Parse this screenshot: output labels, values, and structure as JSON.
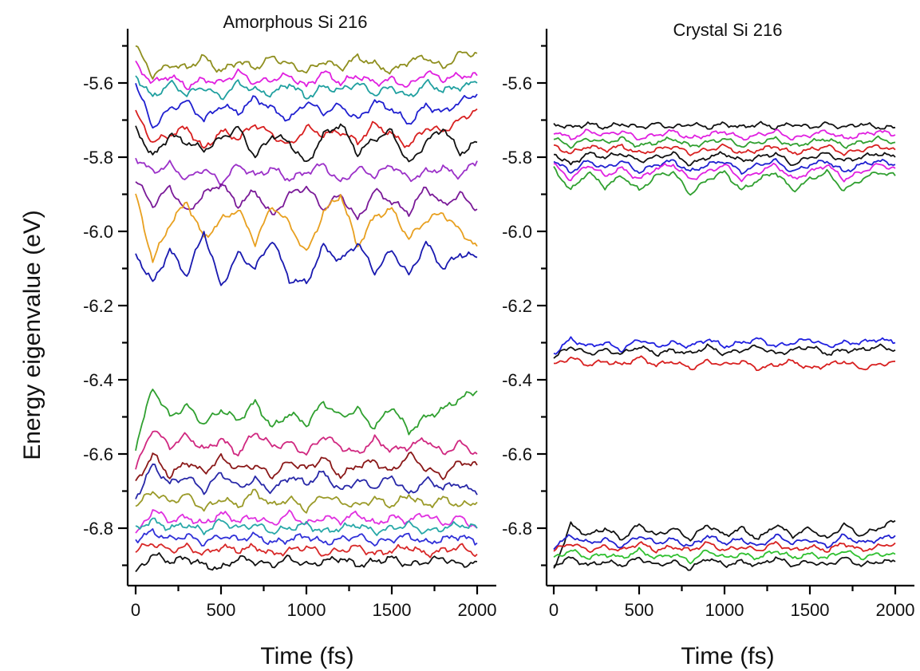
{
  "ylabel": "Energy eigenvalue (eV)",
  "chart_data": [
    {
      "type": "line",
      "title": "Amorphous  Si 216",
      "xlabel": "Time (fs)",
      "ylabel": "Energy eigenvalue (eV)",
      "xlim": [
        0,
        2000
      ],
      "ylim": [
        -6.93,
        -5.49
      ],
      "xticks": [
        "0",
        "500",
        "1000",
        "1500",
        "2000"
      ],
      "yticks": [
        "-5.6",
        "-5.8",
        "-6.0",
        "-6.2",
        "-6.4",
        "-6.6",
        "-6.8"
      ],
      "x": [
        0,
        100,
        200,
        300,
        400,
        500,
        600,
        700,
        800,
        900,
        1000,
        1100,
        1200,
        1300,
        1400,
        1500,
        1600,
        1700,
        1800,
        1900,
        2000
      ],
      "series": [
        {
          "color": "#8f8f1f",
          "values": [
            -5.5,
            -5.58,
            -5.55,
            -5.56,
            -5.53,
            -5.57,
            -5.54,
            -5.56,
            -5.53,
            -5.55,
            -5.57,
            -5.54,
            -5.56,
            -5.53,
            -5.55,
            -5.57,
            -5.54,
            -5.53,
            -5.56,
            -5.52,
            -5.52
          ]
        },
        {
          "color": "#e020e0",
          "values": [
            -5.55,
            -5.6,
            -5.58,
            -5.61,
            -5.59,
            -5.6,
            -5.57,
            -5.6,
            -5.59,
            -5.58,
            -5.61,
            -5.57,
            -5.6,
            -5.58,
            -5.6,
            -5.59,
            -5.61,
            -5.57,
            -5.59,
            -5.58,
            -5.58
          ]
        },
        {
          "color": "#20a0a0",
          "values": [
            -5.58,
            -5.64,
            -5.6,
            -5.63,
            -5.61,
            -5.64,
            -5.6,
            -5.62,
            -5.63,
            -5.6,
            -5.64,
            -5.61,
            -5.62,
            -5.6,
            -5.63,
            -5.61,
            -5.64,
            -5.6,
            -5.62,
            -5.61,
            -5.6
          ]
        },
        {
          "color": "#2020d0",
          "values": [
            -5.6,
            -5.72,
            -5.67,
            -5.65,
            -5.7,
            -5.66,
            -5.68,
            -5.64,
            -5.67,
            -5.7,
            -5.65,
            -5.68,
            -5.66,
            -5.7,
            -5.65,
            -5.67,
            -5.71,
            -5.66,
            -5.68,
            -5.65,
            -5.63
          ]
        },
        {
          "color": "#d82020",
          "values": [
            -5.68,
            -5.76,
            -5.74,
            -5.72,
            -5.78,
            -5.73,
            -5.75,
            -5.71,
            -5.74,
            -5.77,
            -5.72,
            -5.74,
            -5.73,
            -5.76,
            -5.71,
            -5.74,
            -5.77,
            -5.72,
            -5.73,
            -5.7,
            -5.67
          ]
        },
        {
          "color": "#111111",
          "values": [
            -5.72,
            -5.8,
            -5.74,
            -5.76,
            -5.78,
            -5.75,
            -5.72,
            -5.8,
            -5.74,
            -5.76,
            -5.82,
            -5.74,
            -5.71,
            -5.79,
            -5.75,
            -5.73,
            -5.82,
            -5.76,
            -5.72,
            -5.79,
            -5.76
          ]
        },
        {
          "color": "#9b30c8",
          "values": [
            -5.8,
            -5.84,
            -5.82,
            -5.86,
            -5.83,
            -5.87,
            -5.82,
            -5.85,
            -5.83,
            -5.86,
            -5.84,
            -5.82,
            -5.87,
            -5.83,
            -5.85,
            -5.82,
            -5.86,
            -5.84,
            -5.83,
            -5.85,
            -5.81
          ]
        },
        {
          "color": "#7a1a98",
          "values": [
            -5.86,
            -5.93,
            -5.88,
            -5.95,
            -5.9,
            -5.87,
            -5.93,
            -5.89,
            -5.96,
            -5.9,
            -5.88,
            -5.94,
            -5.9,
            -5.97,
            -5.89,
            -5.92,
            -5.95,
            -5.88,
            -5.93,
            -5.9,
            -5.94
          ]
        },
        {
          "color": "#e8a020",
          "values": [
            -5.9,
            -6.08,
            -5.98,
            -5.92,
            -6.02,
            -5.97,
            -5.94,
            -6.03,
            -5.93,
            -5.98,
            -6.06,
            -5.95,
            -5.9,
            -6.04,
            -5.96,
            -5.94,
            -6.02,
            -5.97,
            -5.95,
            -6.0,
            -6.04
          ]
        },
        {
          "color": "#1a1ab0",
          "values": [
            -6.06,
            -6.14,
            -6.05,
            -6.12,
            -6.0,
            -6.15,
            -6.06,
            -6.1,
            -6.02,
            -6.13,
            -6.14,
            -6.04,
            -6.08,
            -6.03,
            -6.11,
            -6.05,
            -6.12,
            -6.03,
            -6.1,
            -6.06,
            -6.07
          ]
        },
        {
          "color": "#30a030",
          "values": [
            -6.58,
            -6.42,
            -6.5,
            -6.47,
            -6.52,
            -6.48,
            -6.51,
            -6.46,
            -6.53,
            -6.49,
            -6.52,
            -6.46,
            -6.5,
            -6.48,
            -6.53,
            -6.47,
            -6.54,
            -6.5,
            -6.48,
            -6.45,
            -6.43
          ]
        },
        {
          "color": "#d02880",
          "values": [
            -6.64,
            -6.53,
            -6.58,
            -6.55,
            -6.59,
            -6.56,
            -6.6,
            -6.54,
            -6.58,
            -6.57,
            -6.6,
            -6.55,
            -6.58,
            -6.6,
            -6.56,
            -6.59,
            -6.58,
            -6.56,
            -6.6,
            -6.57,
            -6.6
          ]
        },
        {
          "color": "#8a1818",
          "values": [
            -6.68,
            -6.6,
            -6.66,
            -6.62,
            -6.65,
            -6.61,
            -6.64,
            -6.63,
            -6.66,
            -6.62,
            -6.64,
            -6.61,
            -6.66,
            -6.63,
            -6.62,
            -6.65,
            -6.6,
            -6.64,
            -6.66,
            -6.62,
            -6.63
          ]
        },
        {
          "color": "#2828a8",
          "values": [
            -6.72,
            -6.63,
            -6.68,
            -6.66,
            -6.7,
            -6.65,
            -6.69,
            -6.67,
            -6.7,
            -6.66,
            -6.68,
            -6.65,
            -6.7,
            -6.67,
            -6.69,
            -6.66,
            -6.71,
            -6.67,
            -6.69,
            -6.68,
            -6.71
          ]
        },
        {
          "color": "#9a9a28",
          "values": [
            -6.74,
            -6.7,
            -6.73,
            -6.71,
            -6.75,
            -6.72,
            -6.74,
            -6.7,
            -6.74,
            -6.72,
            -6.75,
            -6.71,
            -6.73,
            -6.74,
            -6.72,
            -6.74,
            -6.71,
            -6.74,
            -6.72,
            -6.74,
            -6.73
          ]
        },
        {
          "color": "#e030e0",
          "values": [
            -6.82,
            -6.75,
            -6.78,
            -6.77,
            -6.79,
            -6.76,
            -6.78,
            -6.77,
            -6.79,
            -6.76,
            -6.79,
            -6.77,
            -6.78,
            -6.76,
            -6.79,
            -6.77,
            -6.78,
            -6.76,
            -6.79,
            -6.77,
            -6.8
          ]
        },
        {
          "color": "#28a8a8",
          "values": [
            -6.8,
            -6.78,
            -6.8,
            -6.79,
            -6.81,
            -6.78,
            -6.8,
            -6.79,
            -6.81,
            -6.8,
            -6.79,
            -6.81,
            -6.8,
            -6.79,
            -6.81,
            -6.8,
            -6.79,
            -6.81,
            -6.8,
            -6.79,
            -6.8
          ]
        },
        {
          "color": "#3030d8",
          "values": [
            -6.83,
            -6.81,
            -6.83,
            -6.82,
            -6.84,
            -6.82,
            -6.83,
            -6.82,
            -6.84,
            -6.83,
            -6.82,
            -6.84,
            -6.83,
            -6.82,
            -6.84,
            -6.83,
            -6.82,
            -6.84,
            -6.83,
            -6.82,
            -6.84
          ]
        },
        {
          "color": "#d82828",
          "values": [
            -6.86,
            -6.84,
            -6.86,
            -6.85,
            -6.87,
            -6.85,
            -6.86,
            -6.85,
            -6.87,
            -6.86,
            -6.85,
            -6.87,
            -6.86,
            -6.85,
            -6.87,
            -6.86,
            -6.85,
            -6.87,
            -6.86,
            -6.85,
            -6.87
          ]
        },
        {
          "color": "#111111",
          "values": [
            -6.92,
            -6.87,
            -6.89,
            -6.88,
            -6.9,
            -6.91,
            -6.88,
            -6.89,
            -6.9,
            -6.88,
            -6.9,
            -6.89,
            -6.88,
            -6.9,
            -6.89,
            -6.88,
            -6.9,
            -6.89,
            -6.88,
            -6.9,
            -6.89
          ]
        }
      ]
    },
    {
      "type": "line",
      "title": "Crystal Si 216",
      "xlabel": "Time (fs)",
      "ylabel": "",
      "xlim": [
        0,
        2000
      ],
      "ylim": [
        -6.93,
        -5.49
      ],
      "xticks": [
        "0",
        "500",
        "1000",
        "1500",
        "2000"
      ],
      "yticks": [
        "-5.6",
        "-5.8",
        "-6.0",
        "-6.2",
        "-6.4",
        "-6.6",
        "-6.8"
      ],
      "x": [
        0,
        100,
        200,
        300,
        400,
        500,
        600,
        700,
        800,
        900,
        1000,
        1100,
        1200,
        1300,
        1400,
        1500,
        1600,
        1700,
        1800,
        1900,
        2000
      ],
      "series": [
        {
          "color": "#111111",
          "values": [
            -5.71,
            -5.72,
            -5.71,
            -5.72,
            -5.71,
            -5.72,
            -5.71,
            -5.72,
            -5.71,
            -5.72,
            -5.71,
            -5.72,
            -5.71,
            -5.72,
            -5.71,
            -5.72,
            -5.71,
            -5.72,
            -5.71,
            -5.72,
            -5.72
          ]
        },
        {
          "color": "#e020e0",
          "values": [
            -5.73,
            -5.75,
            -5.73,
            -5.74,
            -5.73,
            -5.75,
            -5.74,
            -5.73,
            -5.75,
            -5.74,
            -5.73,
            -5.75,
            -5.74,
            -5.73,
            -5.75,
            -5.74,
            -5.73,
            -5.75,
            -5.74,
            -5.73,
            -5.74
          ]
        },
        {
          "color": "#30a030",
          "values": [
            -5.75,
            -5.77,
            -5.75,
            -5.76,
            -5.75,
            -5.77,
            -5.76,
            -5.75,
            -5.77,
            -5.76,
            -5.75,
            -5.77,
            -5.76,
            -5.75,
            -5.77,
            -5.76,
            -5.75,
            -5.77,
            -5.76,
            -5.75,
            -5.76
          ]
        },
        {
          "color": "#d82020",
          "values": [
            -5.77,
            -5.79,
            -5.77,
            -5.78,
            -5.77,
            -5.79,
            -5.78,
            -5.77,
            -5.79,
            -5.78,
            -5.77,
            -5.79,
            -5.78,
            -5.77,
            -5.79,
            -5.78,
            -5.77,
            -5.79,
            -5.78,
            -5.77,
            -5.78
          ]
        },
        {
          "color": "#111111",
          "values": [
            -5.79,
            -5.82,
            -5.79,
            -5.8,
            -5.79,
            -5.81,
            -5.8,
            -5.79,
            -5.82,
            -5.8,
            -5.79,
            -5.81,
            -5.8,
            -5.79,
            -5.82,
            -5.8,
            -5.79,
            -5.81,
            -5.8,
            -5.79,
            -5.8
          ]
        },
        {
          "color": "#2020d0",
          "values": [
            -5.81,
            -5.84,
            -5.81,
            -5.83,
            -5.81,
            -5.84,
            -5.82,
            -5.81,
            -5.84,
            -5.82,
            -5.81,
            -5.84,
            -5.82,
            -5.81,
            -5.84,
            -5.82,
            -5.81,
            -5.84,
            -5.82,
            -5.81,
            -5.82
          ]
        },
        {
          "color": "#e020e0",
          "values": [
            -5.82,
            -5.86,
            -5.82,
            -5.85,
            -5.83,
            -5.86,
            -5.83,
            -5.82,
            -5.86,
            -5.84,
            -5.82,
            -5.86,
            -5.84,
            -5.82,
            -5.86,
            -5.84,
            -5.82,
            -5.86,
            -5.84,
            -5.82,
            -5.83
          ]
        },
        {
          "color": "#30a030",
          "values": [
            -5.83,
            -5.89,
            -5.84,
            -5.88,
            -5.85,
            -5.89,
            -5.85,
            -5.84,
            -5.9,
            -5.86,
            -5.84,
            -5.89,
            -5.86,
            -5.84,
            -5.89,
            -5.86,
            -5.84,
            -5.89,
            -5.86,
            -5.84,
            -5.85
          ]
        },
        {
          "color": "#2020e0",
          "values": [
            -6.33,
            -6.29,
            -6.31,
            -6.3,
            -6.32,
            -6.29,
            -6.31,
            -6.3,
            -6.31,
            -6.29,
            -6.31,
            -6.3,
            -6.29,
            -6.31,
            -6.3,
            -6.29,
            -6.31,
            -6.3,
            -6.3,
            -6.29,
            -6.3
          ]
        },
        {
          "color": "#111111",
          "values": [
            -6.34,
            -6.31,
            -6.33,
            -6.32,
            -6.33,
            -6.31,
            -6.33,
            -6.32,
            -6.33,
            -6.31,
            -6.33,
            -6.32,
            -6.31,
            -6.33,
            -6.32,
            -6.31,
            -6.33,
            -6.32,
            -6.32,
            -6.31,
            -6.32
          ]
        },
        {
          "color": "#d82020",
          "values": [
            -6.36,
            -6.34,
            -6.36,
            -6.35,
            -6.36,
            -6.34,
            -6.36,
            -6.35,
            -6.37,
            -6.35,
            -6.36,
            -6.35,
            -6.37,
            -6.36,
            -6.35,
            -6.37,
            -6.36,
            -6.35,
            -6.37,
            -6.36,
            -6.35
          ]
        },
        {
          "color": "#111111",
          "values": [
            -6.91,
            -6.79,
            -6.82,
            -6.8,
            -6.83,
            -6.79,
            -6.82,
            -6.8,
            -6.83,
            -6.79,
            -6.82,
            -6.8,
            -6.83,
            -6.79,
            -6.82,
            -6.8,
            -6.83,
            -6.79,
            -6.82,
            -6.8,
            -6.78
          ]
        },
        {
          "color": "#2020d0",
          "values": [
            -6.85,
            -6.82,
            -6.84,
            -6.83,
            -6.85,
            -6.82,
            -6.84,
            -6.83,
            -6.85,
            -6.82,
            -6.84,
            -6.83,
            -6.85,
            -6.82,
            -6.84,
            -6.83,
            -6.85,
            -6.82,
            -6.84,
            -6.83,
            -6.82
          ]
        },
        {
          "color": "#d82020",
          "values": [
            -6.86,
            -6.84,
            -6.86,
            -6.85,
            -6.86,
            -6.84,
            -6.86,
            -6.85,
            -6.86,
            -6.84,
            -6.86,
            -6.85,
            -6.86,
            -6.84,
            -6.86,
            -6.85,
            -6.86,
            -6.84,
            -6.86,
            -6.85,
            -6.84
          ]
        },
        {
          "color": "#30c030",
          "values": [
            -6.88,
            -6.86,
            -6.88,
            -6.87,
            -6.88,
            -6.86,
            -6.88,
            -6.87,
            -6.89,
            -6.86,
            -6.88,
            -6.87,
            -6.88,
            -6.86,
            -6.88,
            -6.87,
            -6.88,
            -6.86,
            -6.88,
            -6.87,
            -6.87
          ]
        },
        {
          "color": "#111111",
          "values": [
            -6.9,
            -6.88,
            -6.9,
            -6.89,
            -6.9,
            -6.88,
            -6.9,
            -6.89,
            -6.91,
            -6.88,
            -6.9,
            -6.89,
            -6.9,
            -6.88,
            -6.9,
            -6.89,
            -6.9,
            -6.88,
            -6.9,
            -6.89,
            -6.89
          ]
        }
      ]
    }
  ]
}
